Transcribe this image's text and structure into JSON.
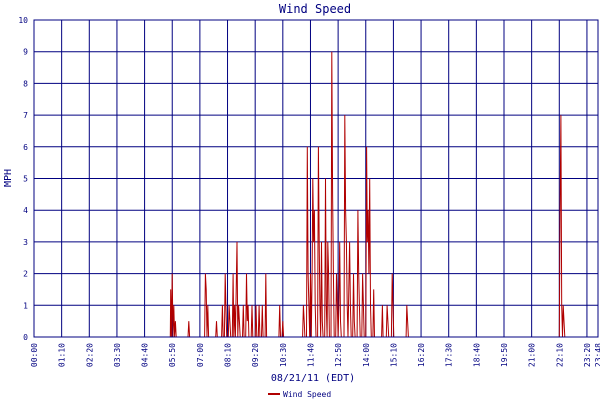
{
  "chart_data": {
    "type": "line",
    "title": "Wind Speed",
    "xlabel": "08/21/11 (EDT)",
    "ylabel": "MPH",
    "ylim": [
      0,
      10
    ],
    "yticks": [
      "0",
      "1",
      "2",
      "3",
      "4",
      "5",
      "6",
      "7",
      "8",
      "9",
      "10"
    ],
    "xticks": [
      "00:00",
      "01:10",
      "02:20",
      "03:30",
      "04:40",
      "05:50",
      "07:00",
      "08:10",
      "09:20",
      "10:30",
      "11:40",
      "12:50",
      "14:00",
      "15:10",
      "16:20",
      "17:30",
      "18:40",
      "19:50",
      "21:00",
      "22:10",
      "23:20",
      "23:48"
    ],
    "xlim": [
      "00:00",
      "23:48"
    ],
    "grid": true,
    "legend": "bottom-center",
    "colors": {
      "series": "#b00000",
      "grid": "#000080",
      "text": "#000080",
      "background": "#ffffff"
    },
    "series": [
      {
        "name": "Wind Speed",
        "points": [
          [
            "00:00",
            0
          ],
          [
            "05:45",
            0
          ],
          [
            "05:46",
            1.5
          ],
          [
            "05:48",
            0
          ],
          [
            "05:50",
            2
          ],
          [
            "05:52",
            0
          ],
          [
            "05:54",
            1
          ],
          [
            "05:56",
            0
          ],
          [
            "05:58",
            0.5
          ],
          [
            "06:00",
            0
          ],
          [
            "06:30",
            0
          ],
          [
            "06:32",
            0.5
          ],
          [
            "06:34",
            0
          ],
          [
            "07:12",
            0
          ],
          [
            "07:14",
            2
          ],
          [
            "07:16",
            1.5
          ],
          [
            "07:18",
            0
          ],
          [
            "07:20",
            1
          ],
          [
            "07:22",
            0
          ],
          [
            "07:40",
            0
          ],
          [
            "07:42",
            0.5
          ],
          [
            "07:44",
            0
          ],
          [
            "07:55",
            0
          ],
          [
            "07:57",
            1
          ],
          [
            "07:59",
            0
          ],
          [
            "08:02",
            0
          ],
          [
            "08:04",
            2
          ],
          [
            "08:06",
            1
          ],
          [
            "08:08",
            0
          ],
          [
            "08:12",
            0
          ],
          [
            "08:14",
            1
          ],
          [
            "08:16",
            0.5
          ],
          [
            "08:18",
            0
          ],
          [
            "08:22",
            0
          ],
          [
            "08:24",
            2
          ],
          [
            "08:26",
            0
          ],
          [
            "08:28",
            1
          ],
          [
            "08:30",
            0
          ],
          [
            "08:32",
            1.5
          ],
          [
            "08:34",
            3
          ],
          [
            "08:36",
            0
          ],
          [
            "08:38",
            1
          ],
          [
            "08:40",
            0.5
          ],
          [
            "08:42",
            0
          ],
          [
            "08:48",
            0
          ],
          [
            "08:50",
            1
          ],
          [
            "08:52",
            0
          ],
          [
            "08:56",
            0
          ],
          [
            "08:58",
            2
          ],
          [
            "09:00",
            0.5
          ],
          [
            "09:02",
            1
          ],
          [
            "09:04",
            0
          ],
          [
            "09:10",
            0
          ],
          [
            "09:12",
            1
          ],
          [
            "09:14",
            0
          ],
          [
            "09:20",
            0
          ],
          [
            "09:22",
            1
          ],
          [
            "09:24",
            0
          ],
          [
            "09:28",
            0
          ],
          [
            "09:30",
            1
          ],
          [
            "09:32",
            0
          ],
          [
            "09:36",
            0
          ],
          [
            "09:38",
            1
          ],
          [
            "09:40",
            0
          ],
          [
            "09:45",
            0
          ],
          [
            "09:47",
            2
          ],
          [
            "09:49",
            0
          ],
          [
            "10:20",
            0
          ],
          [
            "10:22",
            1
          ],
          [
            "10:24",
            0
          ],
          [
            "10:28",
            0
          ],
          [
            "10:30",
            0.5
          ],
          [
            "10:32",
            0
          ],
          [
            "11:20",
            0
          ],
          [
            "11:22",
            1
          ],
          [
            "11:24",
            0.5
          ],
          [
            "11:26",
            0
          ],
          [
            "11:30",
            0
          ],
          [
            "11:32",
            6
          ],
          [
            "11:34",
            2
          ],
          [
            "11:36",
            1
          ],
          [
            "11:38",
            0
          ],
          [
            "11:40",
            2
          ],
          [
            "11:42",
            0
          ],
          [
            "11:44",
            2
          ],
          [
            "11:46",
            5
          ],
          [
            "11:48",
            3
          ],
          [
            "11:50",
            4
          ],
          [
            "11:52",
            1
          ],
          [
            "11:54",
            0
          ],
          [
            "11:58",
            0
          ],
          [
            "12:00",
            6
          ],
          [
            "12:02",
            3
          ],
          [
            "12:04",
            1
          ],
          [
            "12:06",
            0
          ],
          [
            "12:08",
            3
          ],
          [
            "12:10",
            0.5
          ],
          [
            "12:12",
            0
          ],
          [
            "12:16",
            0
          ],
          [
            "12:18",
            5
          ],
          [
            "12:20",
            1
          ],
          [
            "12:22",
            0
          ],
          [
            "12:24",
            3
          ],
          [
            "12:26",
            2
          ],
          [
            "12:28",
            0
          ],
          [
            "12:32",
            0
          ],
          [
            "12:34",
            9
          ],
          [
            "12:36",
            4.5
          ],
          [
            "12:38",
            2
          ],
          [
            "12:40",
            0
          ],
          [
            "12:44",
            0
          ],
          [
            "12:46",
            2
          ],
          [
            "12:48",
            1
          ],
          [
            "12:50",
            0
          ],
          [
            "12:52",
            1
          ],
          [
            "12:54",
            3
          ],
          [
            "12:56",
            0.5
          ],
          [
            "12:58",
            0
          ],
          [
            "13:05",
            0
          ],
          [
            "13:07",
            7
          ],
          [
            "13:09",
            4
          ],
          [
            "13:11",
            3
          ],
          [
            "13:13",
            1
          ],
          [
            "13:15",
            0
          ],
          [
            "13:17",
            1.5
          ],
          [
            "13:19",
            3
          ],
          [
            "13:21",
            1
          ],
          [
            "13:23",
            0
          ],
          [
            "13:27",
            0
          ],
          [
            "13:29",
            2
          ],
          [
            "13:31",
            0.5
          ],
          [
            "13:33",
            0
          ],
          [
            "13:38",
            0
          ],
          [
            "13:40",
            4
          ],
          [
            "13:42",
            2
          ],
          [
            "13:44",
            1
          ],
          [
            "13:46",
            0
          ],
          [
            "13:50",
            0
          ],
          [
            "13:52",
            2
          ],
          [
            "13:54",
            1
          ],
          [
            "13:56",
            0
          ],
          [
            "14:00",
            0
          ],
          [
            "14:02",
            6
          ],
          [
            "14:04",
            3
          ],
          [
            "14:06",
            4
          ],
          [
            "14:08",
            2
          ],
          [
            "14:10",
            5
          ],
          [
            "14:12",
            1
          ],
          [
            "14:14",
            0
          ],
          [
            "14:18",
            0
          ],
          [
            "14:20",
            1.5
          ],
          [
            "14:22",
            0
          ],
          [
            "14:40",
            0
          ],
          [
            "14:42",
            1
          ],
          [
            "14:44",
            0
          ],
          [
            "14:52",
            0
          ],
          [
            "14:54",
            1
          ],
          [
            "14:56",
            0.5
          ],
          [
            "14:58",
            0
          ],
          [
            "15:05",
            0
          ],
          [
            "15:07",
            2
          ],
          [
            "15:09",
            1
          ],
          [
            "15:11",
            0
          ],
          [
            "15:42",
            0
          ],
          [
            "15:44",
            1
          ],
          [
            "15:46",
            0.5
          ],
          [
            "15:48",
            0
          ],
          [
            "22:10",
            0
          ],
          [
            "22:12",
            4
          ],
          [
            "22:14",
            7
          ],
          [
            "22:16",
            1
          ],
          [
            "22:18",
            0
          ],
          [
            "22:20",
            1
          ],
          [
            "22:22",
            0.5
          ],
          [
            "22:24",
            0
          ],
          [
            "23:48",
            0
          ]
        ]
      }
    ]
  }
}
